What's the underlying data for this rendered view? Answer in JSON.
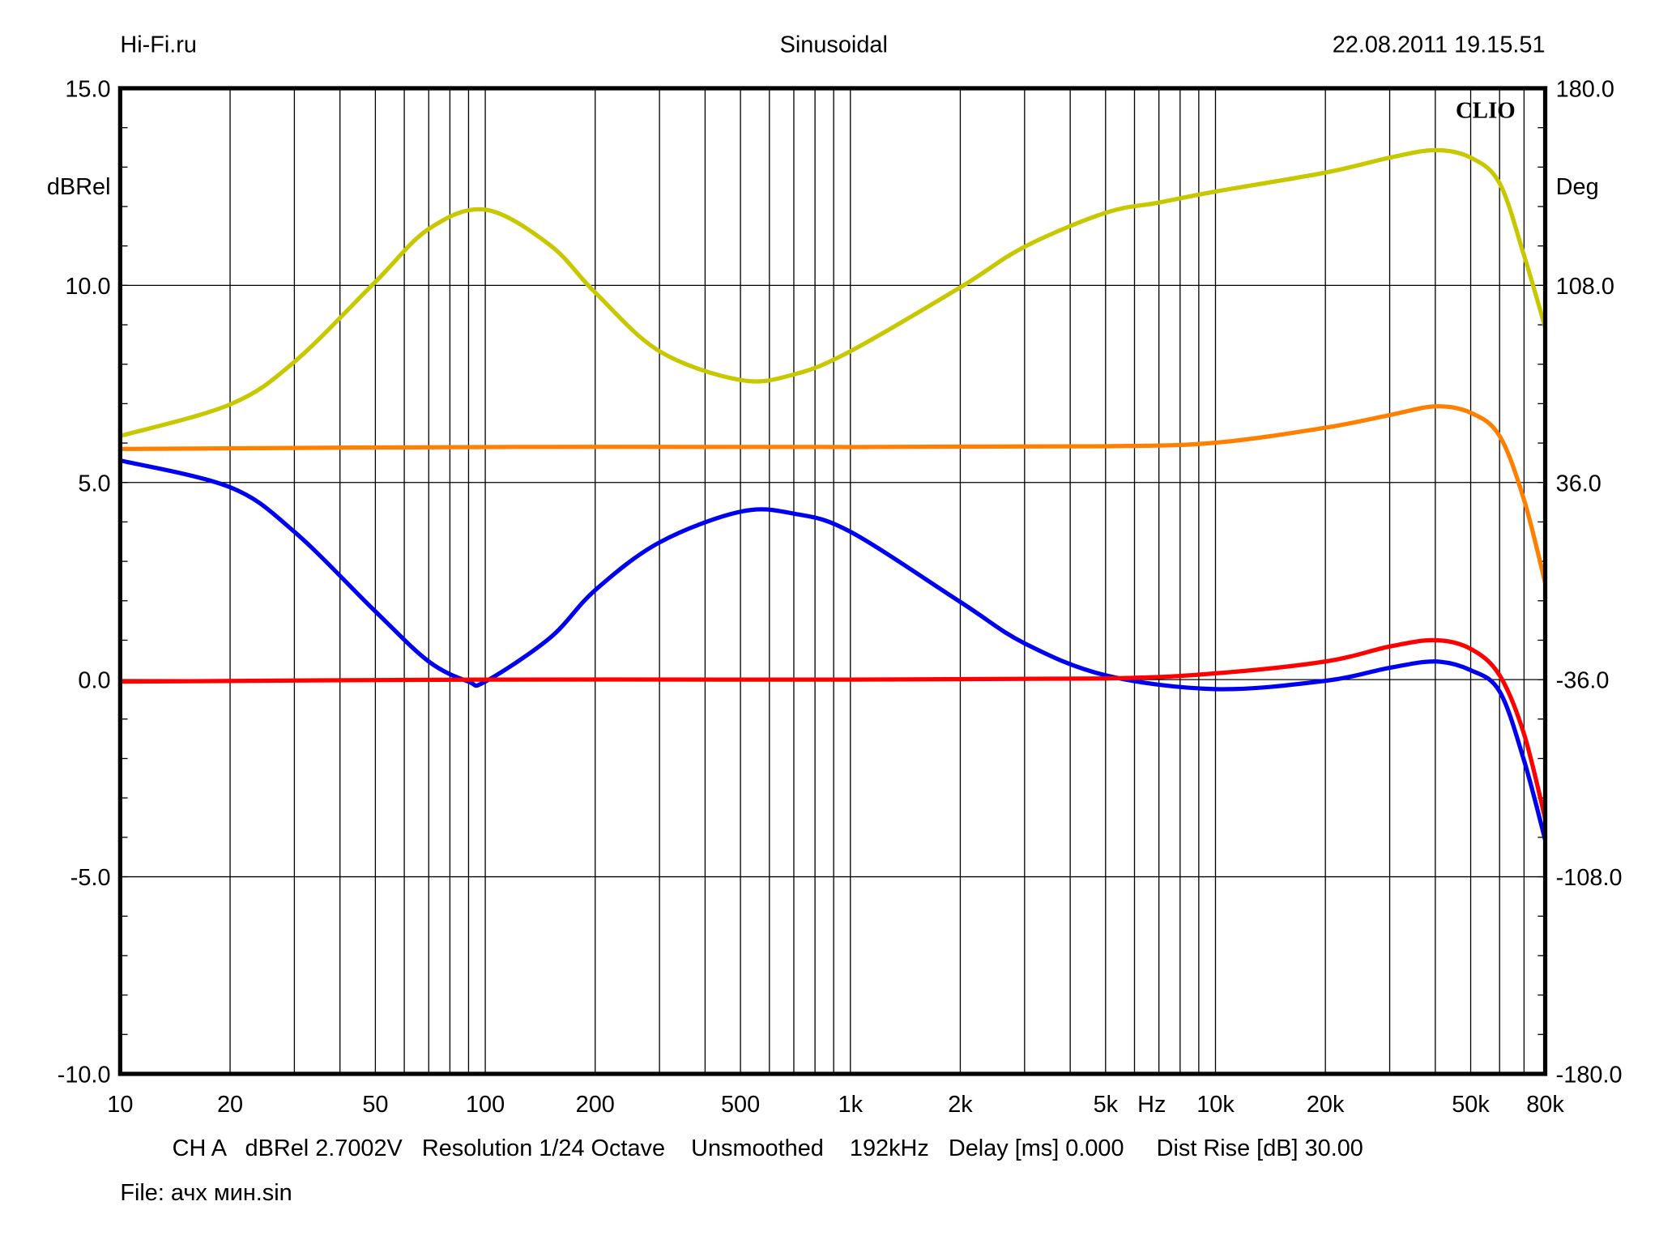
{
  "header": {
    "left": "Hi-Fi.ru",
    "center": "Sinusoidal",
    "right": "22.08.2011 19.15.51"
  },
  "logo": "CLIO",
  "footer": {
    "line1": "CH A   dBRel 2.7002V   Resolution 1/24 Octave    Unsmoothed    192kHz   Delay [ms] 0.000     Dist Rise [dB] 30.00",
    "line2": "File: ачх мин.sin"
  },
  "chart_data": {
    "type": "line",
    "xscale": "log",
    "xlim": [
      10,
      80000
    ],
    "ylim": [
      -10,
      15
    ],
    "y2lim": [
      -180,
      180
    ],
    "ylabel": "dBRel",
    "y2label": "Deg",
    "xunit": "Hz",
    "grid": true,
    "x_ticks": [
      {
        "v": 10,
        "label": "10"
      },
      {
        "v": 20,
        "label": "20"
      },
      {
        "v": 50,
        "label": "50"
      },
      {
        "v": 100,
        "label": "100"
      },
      {
        "v": 200,
        "label": "200"
      },
      {
        "v": 500,
        "label": "500"
      },
      {
        "v": 1000,
        "label": "1k"
      },
      {
        "v": 2000,
        "label": "2k"
      },
      {
        "v": 5000,
        "label": "5k"
      },
      {
        "v": 10000,
        "label": "10k"
      },
      {
        "v": 20000,
        "label": "20k"
      },
      {
        "v": 50000,
        "label": "50k"
      },
      {
        "v": 80000,
        "label": "80k"
      }
    ],
    "y_ticks": [
      {
        "v": 15,
        "label": "15.0"
      },
      {
        "v": 10,
        "label": "10.0"
      },
      {
        "v": 5,
        "label": "5.0"
      },
      {
        "v": 0,
        "label": "0.0"
      },
      {
        "v": -5,
        "label": "-5.0"
      },
      {
        "v": -10,
        "label": "-10.0"
      }
    ],
    "y2_ticks": [
      {
        "v": 180,
        "label": "180.0"
      },
      {
        "v": 108,
        "label": "108.0"
      },
      {
        "v": 36,
        "label": "36.0"
      },
      {
        "v": -36,
        "label": "-36.0"
      },
      {
        "v": -108,
        "label": "-108.0"
      },
      {
        "v": -180,
        "label": "-180.0"
      }
    ],
    "series": [
      {
        "color": "#c8c800",
        "x": [
          10,
          20,
          30,
          50,
          70,
          100,
          150,
          200,
          300,
          500,
          700,
          1000,
          2000,
          3000,
          5000,
          7000,
          10000,
          20000,
          30000,
          40000,
          50000,
          60000,
          70000,
          80000
        ],
        "y": [
          6.18,
          6.98,
          8.06,
          10.09,
          11.43,
          11.92,
          11.03,
          9.82,
          8.33,
          7.6,
          7.74,
          8.33,
          9.95,
          10.98,
          11.84,
          12.1,
          12.38,
          12.86,
          13.24,
          13.43,
          13.24,
          12.59,
          10.76,
          8.93
        ]
      },
      {
        "color": "#ff8000",
        "x": [
          10,
          100,
          1000,
          5000,
          10000,
          20000,
          30000,
          40000,
          50000,
          60000,
          70000,
          80000
        ],
        "y": [
          5.85,
          5.9,
          5.9,
          5.92,
          6.01,
          6.39,
          6.71,
          6.93,
          6.77,
          6.18,
          4.56,
          2.45
        ]
      },
      {
        "color": "#0000f0",
        "x": [
          10,
          20,
          30,
          50,
          70,
          90,
          100,
          150,
          200,
          300,
          500,
          700,
          1000,
          2000,
          3000,
          5000,
          10000,
          20000,
          30000,
          40000,
          50000,
          60000,
          70000,
          80000
        ],
        "y": [
          5.56,
          4.88,
          3.75,
          1.73,
          0.46,
          -0.05,
          -0.05,
          1.05,
          2.27,
          3.48,
          4.26,
          4.21,
          3.75,
          1.97,
          0.92,
          0.11,
          -0.24,
          -0.03,
          0.3,
          0.46,
          0.24,
          -0.3,
          -2.05,
          -4.07
        ]
      },
      {
        "color": "#ff0000",
        "x": [
          10,
          100,
          1000,
          5000,
          10000,
          20000,
          30000,
          40000,
          50000,
          60000,
          70000,
          80000
        ],
        "y": [
          -0.05,
          0,
          0,
          0.03,
          0.16,
          0.46,
          0.84,
          1.0,
          0.78,
          0.11,
          -1.38,
          -3.53
        ]
      }
    ]
  }
}
